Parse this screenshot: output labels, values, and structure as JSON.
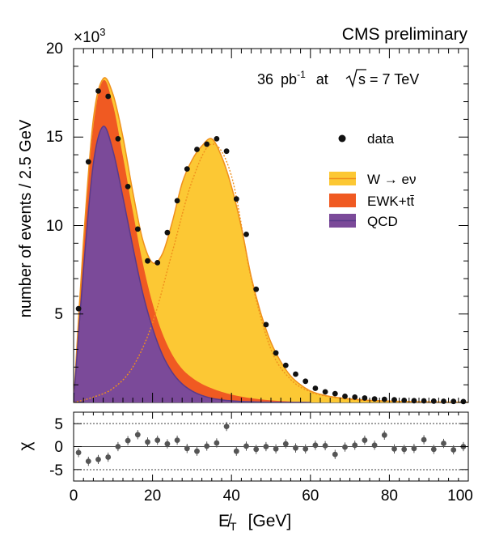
{
  "chart_data": {
    "type": "area",
    "header": {
      "experiment": "CMS preliminary",
      "lumi_value": "36",
      "lumi_unit": "pb",
      "lumi_exp": "-1",
      "lumi_at": "at",
      "energy_sqrt": "s",
      "energy_rest": " = 7 TeV",
      "scale_prefix": "×10",
      "scale_exp": "3"
    },
    "xlabel": "E̸",
    "xlabel_sub": "T",
    "xlabel_unit": "[GeV]",
    "ylabel": "number of events / 2.5 GeV",
    "ratio_ylabel": "χ",
    "xlim": [
      0,
      100
    ],
    "ylim": [
      0,
      20
    ],
    "ratio_ylim": [
      -7.5,
      7.5
    ],
    "x_ticks": [
      "0",
      "20",
      "40",
      "60",
      "80",
      "100"
    ],
    "y_ticks": [
      "5",
      "10",
      "15",
      "20"
    ],
    "ratio_ticks": [
      "5",
      "0",
      "-5"
    ],
    "units": "thousands of events",
    "legend": {
      "position": "right",
      "entries": [
        {
          "key": "data",
          "label": "data"
        },
        {
          "key": "wenu",
          "label": "W → eν"
        },
        {
          "key": "ewk",
          "label": "EWK+tt̄"
        },
        {
          "key": "qcd",
          "label": "QCD"
        }
      ]
    },
    "colors": {
      "wenu": "#fcc834",
      "wenu_line": "#f0901c",
      "ewk": "#f05a22",
      "qcd": "#7b4a99",
      "qcd_line": "#5a3a8a",
      "data": "#111111",
      "ratio_point": "#555555"
    },
    "series": [
      {
        "name": "QCD",
        "x": [
          0,
          2.5,
          5,
          7.5,
          10,
          12.5,
          15,
          17.5,
          20,
          22.5,
          25,
          27.5,
          30,
          32.5,
          35,
          37.5,
          40,
          42.5,
          45,
          47.5,
          50,
          52.5,
          55,
          57.5,
          60
        ],
        "values": [
          0,
          7.5,
          13.5,
          15.6,
          14.2,
          11.6,
          8.8,
          6.2,
          4.2,
          2.7,
          1.7,
          1.05,
          0.65,
          0.4,
          0.24,
          0.15,
          0.09,
          0.06,
          0.04,
          0.025,
          0.015,
          0.01,
          0.006,
          0.004,
          0
        ]
      },
      {
        "name": "QCD+EWK+tt̄",
        "x": [
          0,
          2.5,
          5,
          7.5,
          10,
          12.5,
          15,
          17.5,
          20,
          22.5,
          25,
          27.5,
          30,
          32.5,
          35,
          37.5,
          40,
          42.5,
          45,
          47.5,
          50,
          52.5,
          55,
          57.5,
          60
        ],
        "values": [
          0,
          9.0,
          15.6,
          18.2,
          16.8,
          13.9,
          10.8,
          7.9,
          5.6,
          3.9,
          2.7,
          1.9,
          1.4,
          1.05,
          0.8,
          0.6,
          0.45,
          0.33,
          0.24,
          0.17,
          0.12,
          0.08,
          0.05,
          0.03,
          0.02
        ]
      },
      {
        "name": "W → eν (alone)",
        "x": [
          0,
          5,
          10,
          15,
          20,
          25,
          30,
          35,
          40,
          45,
          50,
          55,
          60,
          65,
          70,
          75,
          80,
          85,
          90,
          95,
          100
        ],
        "values": [
          0,
          0.3,
          0.8,
          2.0,
          4.5,
          8.5,
          12.5,
          14.6,
          12.8,
          7.0,
          3.0,
          1.3,
          0.6,
          0.32,
          0.18,
          0.1,
          0.07,
          0.05,
          0.03,
          0.02,
          0.01
        ]
      },
      {
        "name": "Total",
        "x": [
          0,
          2.5,
          5,
          7.5,
          10,
          12.5,
          15,
          17.5,
          20,
          22.5,
          25,
          27.5,
          30,
          32.5,
          35,
          37.5,
          40,
          42.5,
          45,
          47.5,
          50,
          52.5,
          55,
          57.5,
          60,
          62.5,
          65,
          67.5,
          70,
          75,
          80,
          85,
          90,
          95,
          100
        ],
        "values": [
          0,
          9.1,
          16.0,
          18.3,
          17.4,
          15.0,
          11.9,
          9.2,
          7.9,
          8.4,
          10.2,
          12.4,
          13.7,
          14.5,
          14.9,
          13.9,
          12.2,
          9.9,
          7.1,
          5.0,
          3.4,
          2.3,
          1.5,
          1.0,
          0.65,
          0.46,
          0.34,
          0.26,
          0.2,
          0.12,
          0.08,
          0.05,
          0.03,
          0.02,
          0.01
        ]
      },
      {
        "name": "data",
        "x": [
          1.25,
          3.75,
          6.25,
          8.75,
          11.25,
          13.75,
          16.25,
          18.75,
          21.25,
          23.75,
          26.25,
          28.75,
          31.25,
          33.75,
          36.25,
          38.75,
          41.25,
          43.75,
          46.25,
          48.75,
          51.25,
          53.75,
          56.25,
          58.75,
          61.25,
          63.75,
          66.25,
          68.75,
          71.25,
          73.75,
          76.25,
          78.75,
          81.25,
          83.75,
          86.25,
          88.75,
          91.25,
          93.75,
          96.25,
          98.75
        ],
        "values": [
          5.3,
          13.6,
          17.6,
          17.3,
          14.9,
          12.2,
          9.8,
          8.0,
          7.9,
          9.6,
          11.4,
          13.2,
          14.3,
          14.6,
          14.9,
          14.2,
          11.5,
          9.5,
          6.4,
          4.4,
          2.8,
          2.1,
          1.6,
          1.2,
          0.8,
          0.6,
          0.5,
          0.35,
          0.3,
          0.25,
          0.2,
          0.18,
          0.15,
          0.12,
          0.1,
          0.09,
          0.08,
          0.07,
          0.06,
          0.05
        ]
      },
      {
        "name": "chi",
        "x": [
          1.25,
          3.75,
          6.25,
          8.75,
          11.25,
          13.75,
          16.25,
          18.75,
          21.25,
          23.75,
          26.25,
          28.75,
          31.25,
          33.75,
          36.25,
          38.75,
          41.25,
          43.75,
          46.25,
          48.75,
          51.25,
          53.75,
          56.25,
          58.75,
          61.25,
          63.75,
          66.25,
          68.75,
          71.25,
          73.75,
          76.25,
          78.75,
          81.25,
          83.75,
          86.25,
          88.75,
          91.25,
          93.75,
          96.25,
          98.75
        ],
        "values": [
          -1.3,
          -3.2,
          -2.8,
          -2.3,
          0.0,
          1.3,
          2.6,
          1.0,
          1.4,
          0.6,
          1.4,
          -0.4,
          -1.0,
          0.1,
          0.8,
          4.4,
          -1.0,
          0.1,
          -0.6,
          0.0,
          -0.5,
          0.6,
          -0.3,
          -0.5,
          0.3,
          0.2,
          -1.7,
          -0.1,
          0.3,
          1.4,
          0.3,
          2.5,
          -0.5,
          -0.6,
          -0.4,
          1.5,
          -0.6,
          0.7,
          -0.7,
          0.0
        ]
      }
    ]
  }
}
